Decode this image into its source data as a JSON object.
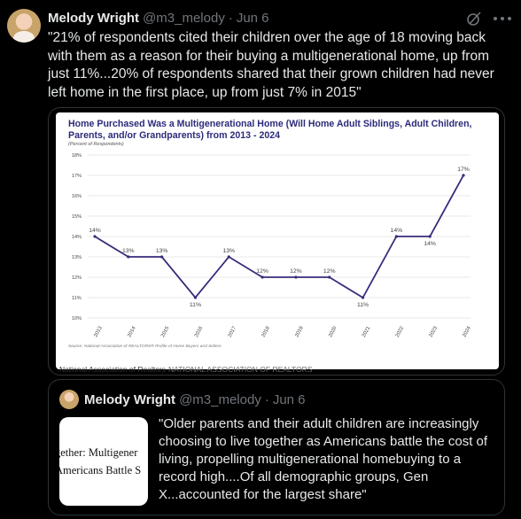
{
  "tweet": {
    "author_name": "Melody Wright",
    "author_handle": "@m3_melody",
    "separator": "·",
    "date": "Jun 6",
    "text": "\"21% of respondents cited their children over the age of 18 moving back with them as a reason for their buying a multigenerational home, up from just 11%...20% of respondents shared that their grown children had never left home in the first place, up from just 7% in 2015\""
  },
  "icons": {
    "grok": "grok-icon",
    "more": "more-icon",
    "avatar": "avatar"
  },
  "media": {
    "caption_org": "National Association of Realtors",
    "caption_caps": "NATIONAL ASSOCIATION OF REALTORS"
  },
  "chart_data": {
    "type": "line",
    "title_line1": "Home Purchased Was a Multigenerational Home (Will Home Adult Siblings, Adult Children,",
    "title_line2": "Parents, and/or Grandparents) from 2013 - 2024",
    "subtitle": "(Percent of Respondents)",
    "source": "Source: National Association of REALTORS® Profile of Home Buyers and Sellers",
    "x": [
      "2013",
      "2014",
      "2015",
      "2016",
      "2017",
      "2018",
      "2019",
      "2020",
      "2021",
      "2022",
      "2023",
      "2024"
    ],
    "values": [
      14,
      13,
      13,
      11,
      13,
      12,
      12,
      12,
      11,
      14,
      14,
      17
    ],
    "data_labels": [
      "14%",
      "13%",
      "13%",
      "11%",
      "13%",
      "12%",
      "12%",
      "12%",
      "11%",
      "14%",
      "14%",
      "17%"
    ],
    "label_position": [
      "above",
      "above",
      "above",
      "below",
      "above",
      "above",
      "above",
      "above",
      "below",
      "above",
      "below",
      "above"
    ],
    "y_ticks": [
      "18%",
      "17%",
      "16%",
      "15%",
      "14%",
      "13%",
      "12%",
      "11%",
      "10%"
    ],
    "ylim": [
      10,
      18
    ],
    "colors": {
      "line": "#3a2a7a",
      "title": "#2c2a7a",
      "grid": "#e3e3e3",
      "text": "#444444"
    },
    "grid": true,
    "legend": "none"
  },
  "quote": {
    "author_name": "Melody Wright",
    "author_handle": "@m3_melody",
    "separator": "·",
    "date": "Jun 6",
    "thumb_line1": "gether: Multigener",
    "thumb_line2": "Americans Battle S",
    "text": "\"Older parents and their adult children are increasingly choosing to live together as Americans battle the cost of living, propelling multigenerational homebuying to a record high....Of all demographic groups, Gen X...accounted for the largest share\""
  }
}
